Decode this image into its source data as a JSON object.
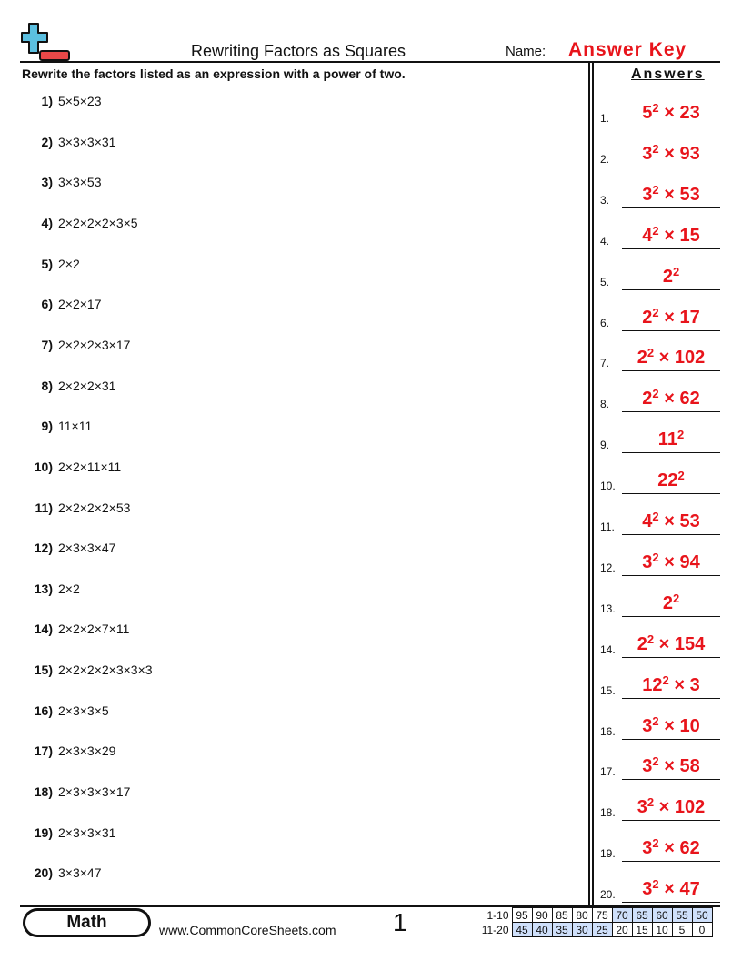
{
  "header": {
    "title": "Rewriting Factors as Squares",
    "name_label": "Name:",
    "name_value": "Answer Key"
  },
  "instructions": "Rewrite the factors listed as an expression with a power of two.",
  "answers_heading": "Answers",
  "questions": [
    {
      "n": "1)",
      "text": "5×5×23"
    },
    {
      "n": "2)",
      "text": "3×3×3×31"
    },
    {
      "n": "3)",
      "text": "3×3×53"
    },
    {
      "n": "4)",
      "text": "2×2×2×2×3×5"
    },
    {
      "n": "5)",
      "text": "2×2"
    },
    {
      "n": "6)",
      "text": "2×2×17"
    },
    {
      "n": "7)",
      "text": "2×2×2×3×17"
    },
    {
      "n": "8)",
      "text": "2×2×2×31"
    },
    {
      "n": "9)",
      "text": "11×11"
    },
    {
      "n": "10)",
      "text": "2×2×11×11"
    },
    {
      "n": "11)",
      "text": "2×2×2×2×53"
    },
    {
      "n": "12)",
      "text": "2×3×3×47"
    },
    {
      "n": "13)",
      "text": "2×2"
    },
    {
      "n": "14)",
      "text": "2×2×2×7×11"
    },
    {
      "n": "15)",
      "text": "2×2×2×2×3×3×3"
    },
    {
      "n": "16)",
      "text": "2×3×3×5"
    },
    {
      "n": "17)",
      "text": "2×3×3×29"
    },
    {
      "n": "18)",
      "text": "2×3×3×3×17"
    },
    {
      "n": "19)",
      "text": "2×3×3×31"
    },
    {
      "n": "20)",
      "text": "3×3×47"
    }
  ],
  "answers": [
    {
      "n": "1.",
      "base": "5",
      "exp": "2",
      "rest": " × 23"
    },
    {
      "n": "2.",
      "base": "3",
      "exp": "2",
      "rest": " × 93"
    },
    {
      "n": "3.",
      "base": "3",
      "exp": "2",
      "rest": " × 53"
    },
    {
      "n": "4.",
      "base": "4",
      "exp": "2",
      "rest": " × 15"
    },
    {
      "n": "5.",
      "base": "2",
      "exp": "2",
      "rest": ""
    },
    {
      "n": "6.",
      "base": "2",
      "exp": "2",
      "rest": " × 17"
    },
    {
      "n": "7.",
      "base": "2",
      "exp": "2",
      "rest": " × 102"
    },
    {
      "n": "8.",
      "base": "2",
      "exp": "2",
      "rest": " × 62"
    },
    {
      "n": "9.",
      "base": "11",
      "exp": "2",
      "rest": ""
    },
    {
      "n": "10.",
      "base": "22",
      "exp": "2",
      "rest": ""
    },
    {
      "n": "11.",
      "base": "4",
      "exp": "2",
      "rest": " × 53"
    },
    {
      "n": "12.",
      "base": "3",
      "exp": "2",
      "rest": " × 94"
    },
    {
      "n": "13.",
      "base": "2",
      "exp": "2",
      "rest": ""
    },
    {
      "n": "14.",
      "base": "2",
      "exp": "2",
      "rest": " × 154"
    },
    {
      "n": "15.",
      "base": "12",
      "exp": "2",
      "rest": " × 3"
    },
    {
      "n": "16.",
      "base": "3",
      "exp": "2",
      "rest": " × 10"
    },
    {
      "n": "17.",
      "base": "3",
      "exp": "2",
      "rest": " × 58"
    },
    {
      "n": "18.",
      "base": "3",
      "exp": "2",
      "rest": " × 102"
    },
    {
      "n": "19.",
      "base": "3",
      "exp": "2",
      "rest": " × 62"
    },
    {
      "n": "20.",
      "base": "3",
      "exp": "2",
      "rest": " × 47"
    }
  ],
  "footer": {
    "subject": "Math",
    "site": "www.CommonCoreSheets.com",
    "page": "1",
    "score_rows": [
      {
        "label": "1-10",
        "values": [
          "95",
          "90",
          "85",
          "80",
          "75",
          "70",
          "65",
          "60",
          "55",
          "50"
        ]
      },
      {
        "label": "11-20",
        "values": [
          "45",
          "40",
          "35",
          "30",
          "25",
          "20",
          "15",
          "10",
          "5",
          "0"
        ]
      }
    ],
    "highlight_color": "#cfe0fb"
  },
  "colors": {
    "answer": "#e8141b",
    "logo_blue": "#5bbfe0",
    "logo_red": "#e84848"
  }
}
